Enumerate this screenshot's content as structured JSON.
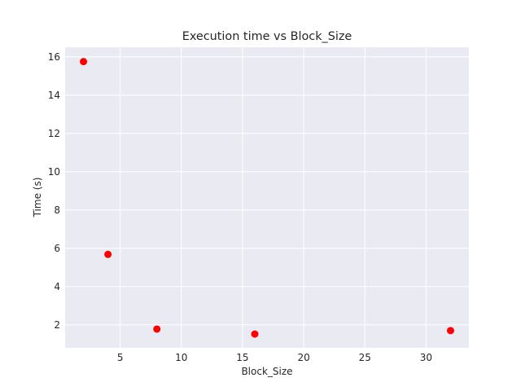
{
  "chart_data": {
    "type": "scatter",
    "title": "Execution time vs Block_Size",
    "xlabel": "Block_Size",
    "ylabel": "Time (s)",
    "xlim": [
      0.5,
      33.5
    ],
    "ylim": [
      0.8,
      16.5
    ],
    "x_ticks": [
      5,
      10,
      15,
      20,
      25,
      30
    ],
    "y_ticks": [
      2,
      4,
      6,
      8,
      10,
      12,
      14,
      16
    ],
    "grid": true,
    "point_color": "#ff0000",
    "background_color": "#eaeaf2",
    "series": [
      {
        "points": [
          {
            "x": 2,
            "y": 15.75
          },
          {
            "x": 4,
            "y": 5.68
          },
          {
            "x": 8,
            "y": 1.78
          },
          {
            "x": 16,
            "y": 1.52
          },
          {
            "x": 32,
            "y": 1.7
          }
        ]
      }
    ]
  }
}
